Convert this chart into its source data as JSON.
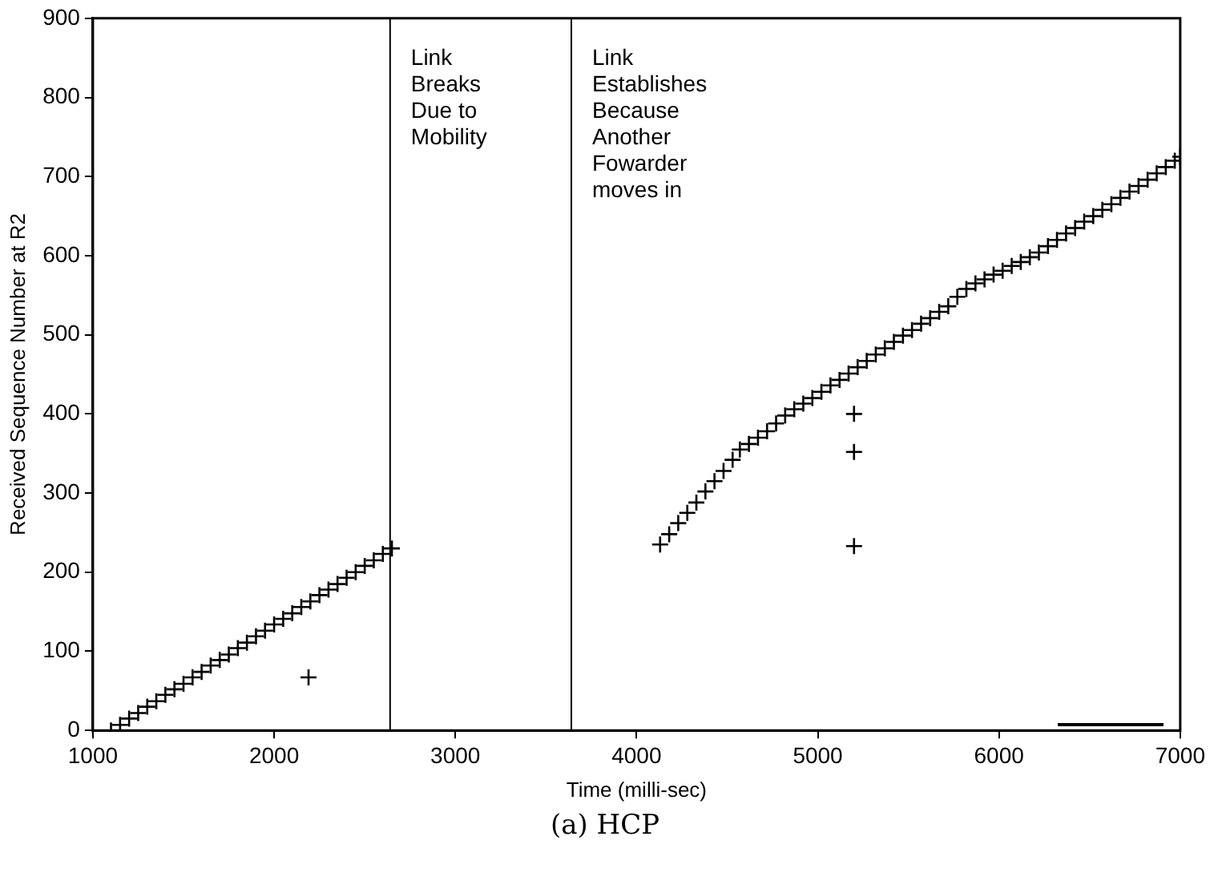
{
  "chart_data": {
    "type": "scatter",
    "xlabel": "Time (milli-sec)",
    "ylabel": "Received Sequence Number at R2",
    "xlim": [
      1000,
      7000
    ],
    "xticks": [
      1000,
      2000,
      3000,
      4000,
      5000,
      6000,
      7000
    ],
    "ylim": [
      0,
      900
    ],
    "yticks": [
      0,
      100,
      200,
      300,
      400,
      500,
      600,
      700,
      800,
      900
    ],
    "grid": false,
    "legend": false,
    "marker": "cross",
    "series": [
      {
        "color": "#000000",
        "x": [
          1100,
          1150,
          1200,
          1250,
          1300,
          1350,
          1400,
          1450,
          1500,
          1550,
          1600,
          1650,
          1700,
          1750,
          1800,
          1850,
          1900,
          1950,
          2000,
          2050,
          2100,
          2150,
          2200,
          2250,
          2300,
          2350,
          2400,
          2450,
          2500,
          2550,
          2600,
          2650,
          2190,
          4130,
          4180,
          4230,
          4280,
          4330,
          4380,
          4430,
          4480,
          4530,
          4570,
          4620,
          4670,
          4720,
          4770,
          4820,
          4870,
          4920,
          4970,
          5020,
          5070,
          5120,
          5170,
          5220,
          5270,
          5320,
          5370,
          5420,
          5470,
          5520,
          5570,
          5620,
          5670,
          5720,
          5770,
          5820,
          5870,
          5920,
          5970,
          6020,
          6070,
          6120,
          6170,
          6220,
          6270,
          6320,
          6370,
          6420,
          6470,
          6520,
          6570,
          6620,
          6670,
          6720,
          6770,
          6820,
          6870,
          6920,
          6970,
          7000,
          5200,
          5200,
          5200
        ],
        "values": [
          0,
          7,
          15,
          22,
          30,
          37,
          45,
          52,
          59,
          67,
          74,
          82,
          89,
          96,
          104,
          111,
          119,
          126,
          134,
          141,
          148,
          156,
          163,
          171,
          178,
          185,
          193,
          200,
          208,
          215,
          223,
          230,
          67,
          235,
          248,
          262,
          275,
          288,
          302,
          315,
          328,
          342,
          355,
          362,
          370,
          378,
          388,
          398,
          406,
          413,
          420,
          428,
          436,
          443,
          451,
          459,
          467,
          475,
          483,
          491,
          499,
          506,
          514,
          521,
          529,
          536,
          548,
          558,
          565,
          570,
          576,
          581,
          587,
          592,
          598,
          604,
          612,
          620,
          628,
          635,
          643,
          650,
          658,
          665,
          673,
          681,
          688,
          696,
          704,
          712,
          720,
          725,
          400,
          352,
          233
        ]
      }
    ],
    "ref_lines": [
      {
        "axis": "x",
        "value": 2640,
        "label": "Link\nBreaks\nDue to\nMobility",
        "color": "#000000"
      },
      {
        "axis": "x",
        "value": 3640,
        "label": "Link\nEstablishes\nBecause\nAnother\nFowarder\nmoves in",
        "color": "#000000"
      }
    ],
    "annotations": [
      "(a) HCP"
    ]
  }
}
